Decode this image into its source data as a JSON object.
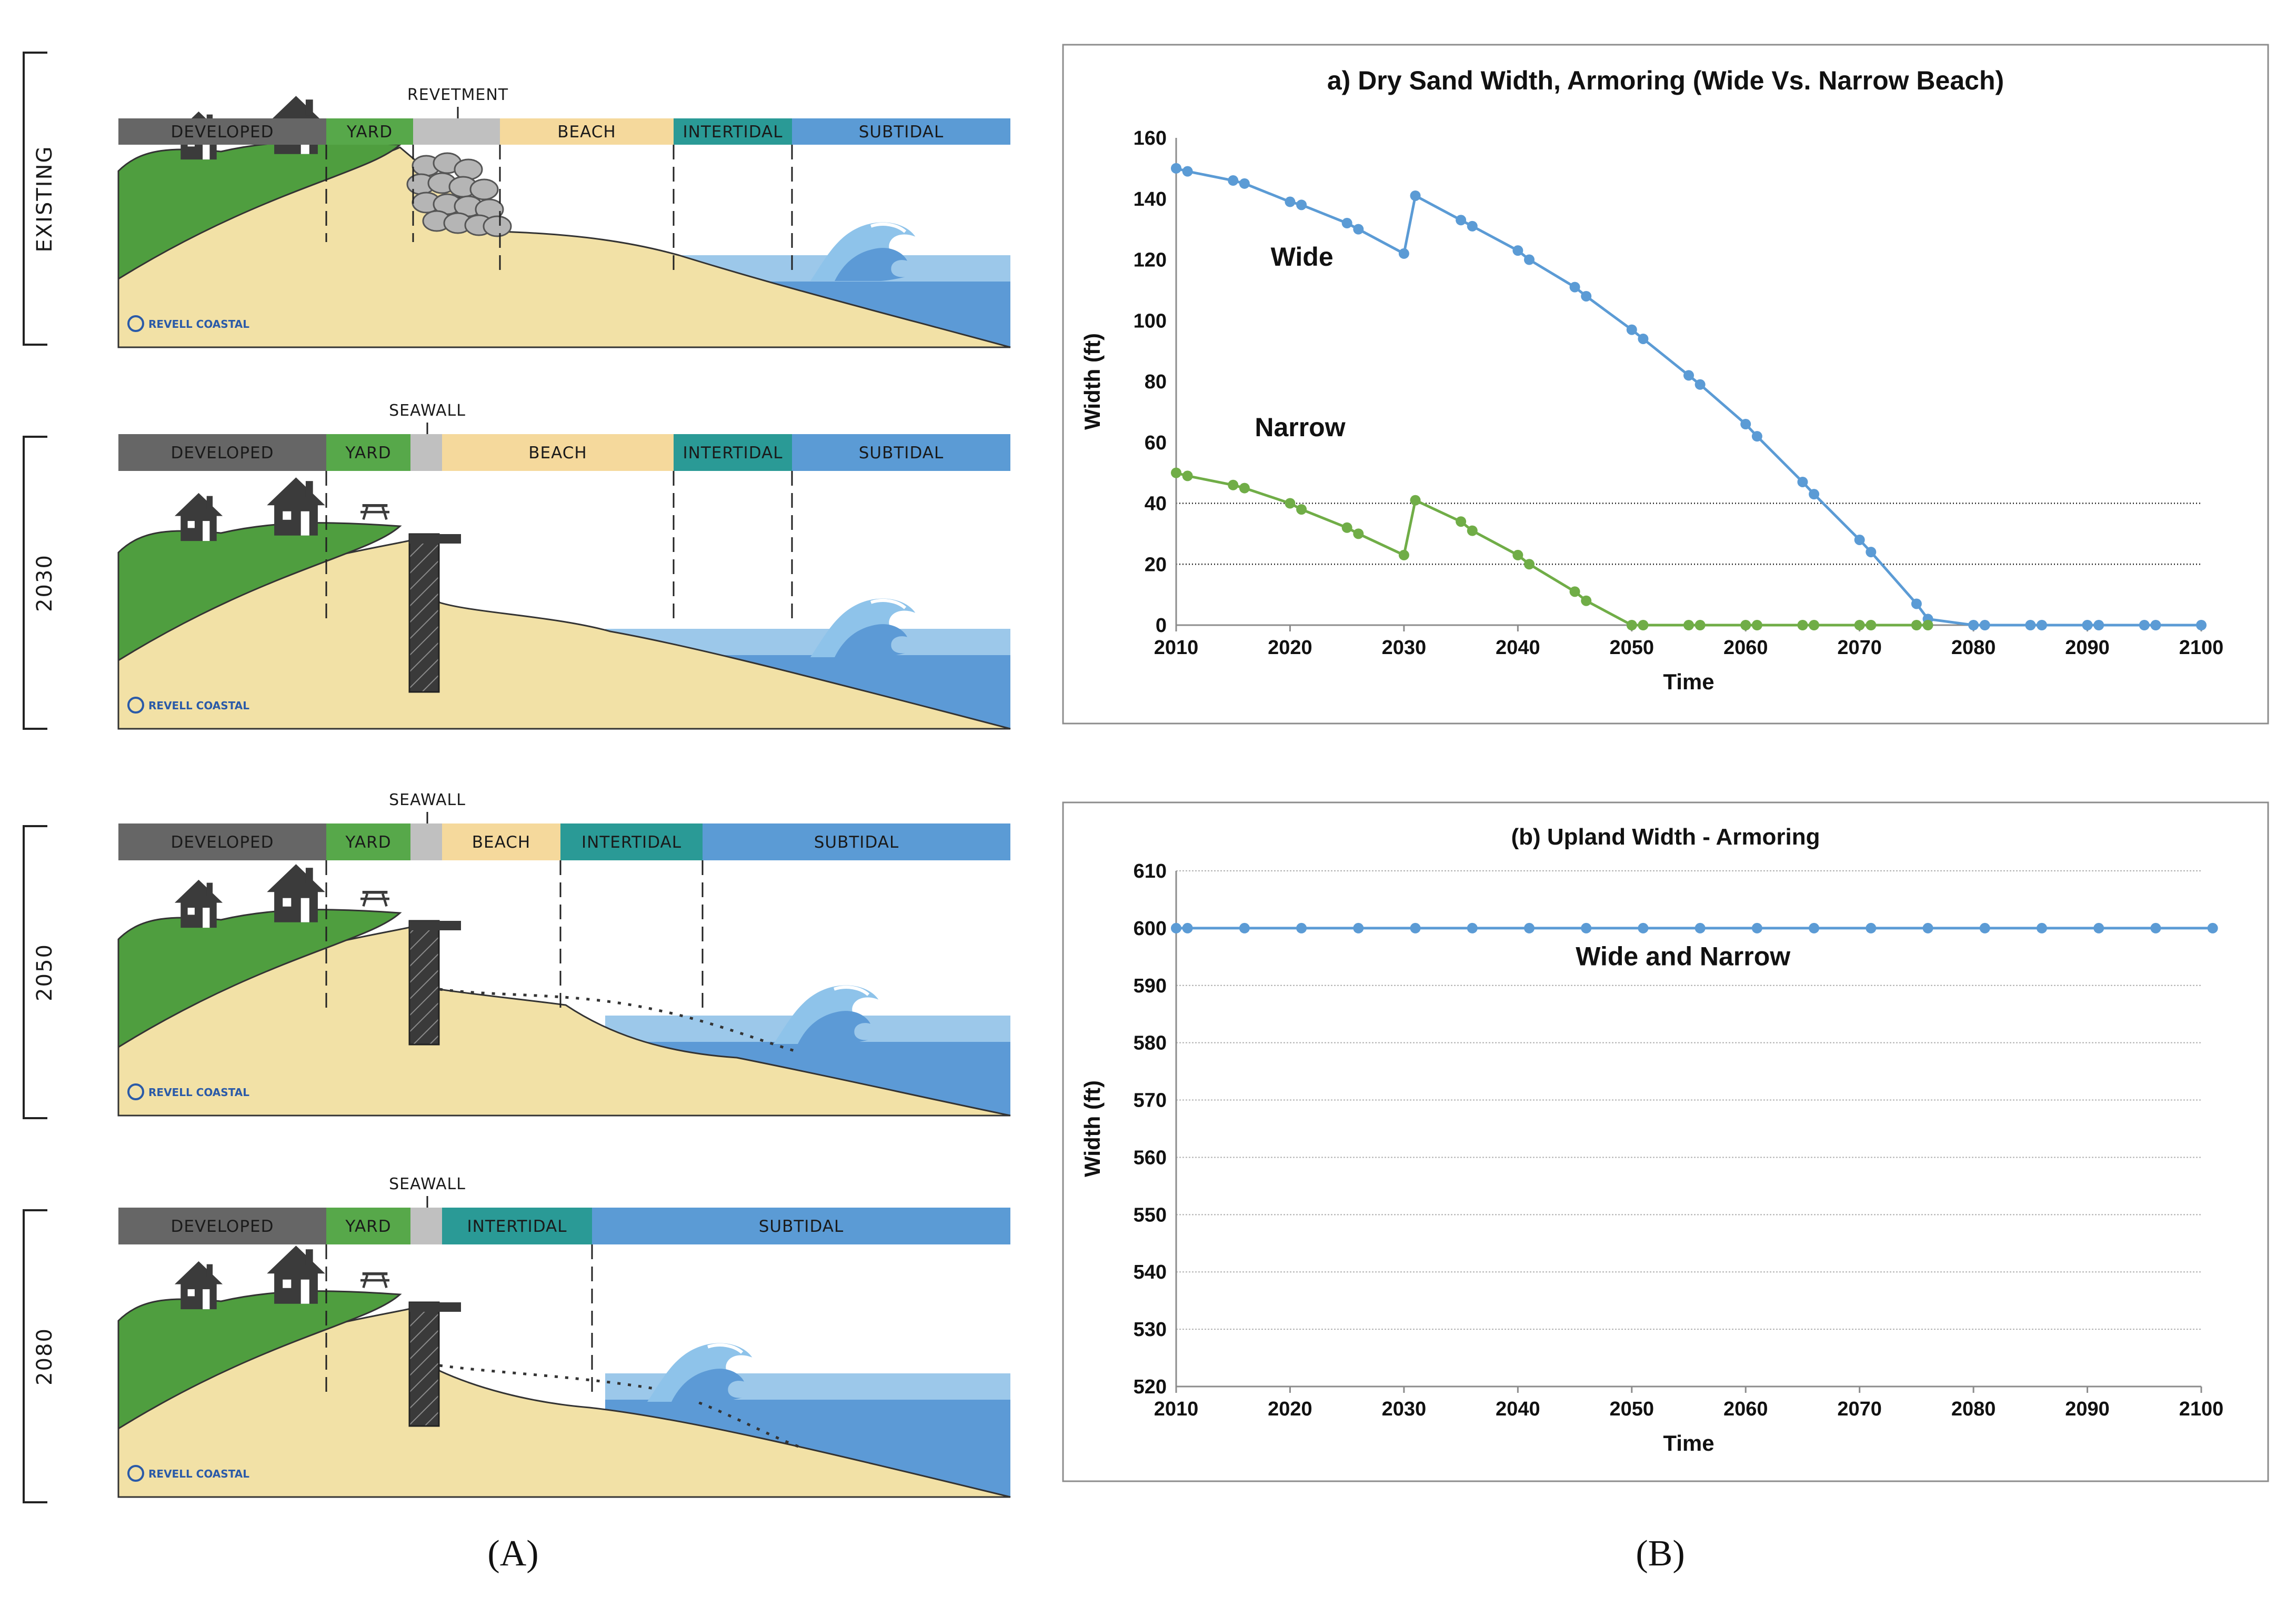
{
  "figure": {
    "panel_a_label": "(A)",
    "panel_b_label": "(B)"
  },
  "diagram": {
    "logo_text": "REVELL COASTAL",
    "rows": [
      {
        "label": "EXISTING",
        "callout": "REVETMENT",
        "zones": [
          "DEVELOPED",
          "YARD",
          "",
          "BEACH",
          "INTERTIDAL",
          "SUBTIDAL"
        ]
      },
      {
        "label": "2030",
        "callout": "SEAWALL",
        "zones": [
          "DEVELOPED",
          "YARD",
          "",
          "BEACH",
          "INTERTIDAL",
          "SUBTIDAL"
        ]
      },
      {
        "label": "2050",
        "callout": "SEAWALL",
        "zones": [
          "DEVELOPED",
          "YARD",
          "",
          "BEACH",
          "INTERTIDAL",
          "SUBTIDAL"
        ]
      },
      {
        "label": "2080",
        "callout": "SEAWALL",
        "zones": [
          "DEVELOPED",
          "YARD",
          "",
          "INTERTIDAL",
          "SUBTIDAL"
        ]
      }
    ],
    "colors": {
      "developed": "#666666",
      "yard": "#57a84a",
      "structure": "#c0c0c0",
      "beach": "#f5d99c",
      "intertidal": "#2a9a96",
      "subtidal": "#5b9bd5",
      "land_green": "#4f9e3f",
      "sand": "#f2e1a6",
      "water_light": "#9cc8ea",
      "water_dark": "#5c9ad6"
    }
  },
  "chart_data": [
    {
      "type": "line",
      "title": "a) Dry Sand Width, Armoring (Wide Vs. Narrow Beach)",
      "xlabel": "Time",
      "ylabel": "Width (ft)",
      "xlim": [
        2010,
        2100
      ],
      "ylim": [
        0,
        160
      ],
      "xticks": [
        "2010",
        "2020",
        "2030",
        "2040",
        "2050",
        "2060",
        "2070",
        "2080",
        "2090",
        "2100"
      ],
      "yticks": [
        "0",
        "20",
        "40",
        "60",
        "80",
        "100",
        "120",
        "140",
        "160"
      ],
      "reference_lines": [
        20,
        40
      ],
      "annotations": [
        "Wide",
        "Narrow"
      ],
      "series": [
        {
          "name": "Wide",
          "color": "#5b9bd5",
          "x": [
            2010,
            2011,
            2015,
            2016,
            2020,
            2021,
            2025,
            2026,
            2030,
            2031,
            2035,
            2036,
            2040,
            2041,
            2045,
            2046,
            2050,
            2051,
            2055,
            2056,
            2060,
            2061,
            2065,
            2066,
            2070,
            2071,
            2075,
            2076,
            2080,
            2081,
            2085,
            2086,
            2090,
            2091,
            2095,
            2096,
            2100
          ],
          "y": [
            150,
            149,
            146,
            145,
            139,
            138,
            132,
            130,
            122,
            141,
            133,
            131,
            123,
            120,
            111,
            108,
            97,
            94,
            82,
            79,
            66,
            62,
            47,
            43,
            28,
            24,
            7,
            2,
            0,
            0,
            0,
            0,
            0,
            0,
            0,
            0,
            0
          ]
        },
        {
          "name": "Narrow",
          "color": "#70ad47",
          "x": [
            2010,
            2011,
            2015,
            2016,
            2020,
            2021,
            2025,
            2026,
            2030,
            2031,
            2035,
            2036,
            2040,
            2041,
            2045,
            2046,
            2050,
            2051,
            2055,
            2056,
            2060,
            2061,
            2065,
            2066,
            2070,
            2071,
            2075,
            2076
          ],
          "y": [
            50,
            49,
            46,
            45,
            40,
            38,
            32,
            30,
            23,
            41,
            34,
            31,
            23,
            20,
            11,
            8,
            0,
            0,
            0,
            0,
            0,
            0,
            0,
            0,
            0,
            0,
            0,
            0
          ]
        }
      ]
    },
    {
      "type": "line",
      "title": "(b) Upland Width - Armoring",
      "xlabel": "Time",
      "ylabel": "Width (ft)",
      "xlim": [
        2010,
        2100
      ],
      "ylim": [
        520,
        610
      ],
      "xticks": [
        "2010",
        "2020",
        "2030",
        "2040",
        "2050",
        "2060",
        "2070",
        "2080",
        "2090",
        "2100"
      ],
      "yticks": [
        "520",
        "530",
        "540",
        "550",
        "560",
        "570",
        "580",
        "590",
        "600",
        "610"
      ],
      "annotations": [
        "Wide and Narrow"
      ],
      "series": [
        {
          "name": "Wide and Narrow",
          "color": "#5b9bd5",
          "x": [
            2010,
            2011,
            2016,
            2021,
            2026,
            2031,
            2036,
            2041,
            2046,
            2051,
            2056,
            2061,
            2066,
            2071,
            2076,
            2081,
            2086,
            2091,
            2096,
            2101
          ],
          "y": [
            600,
            600,
            600,
            600,
            600,
            600,
            600,
            600,
            600,
            600,
            600,
            600,
            600,
            600,
            600,
            600,
            600,
            600,
            600,
            600
          ]
        }
      ]
    }
  ]
}
